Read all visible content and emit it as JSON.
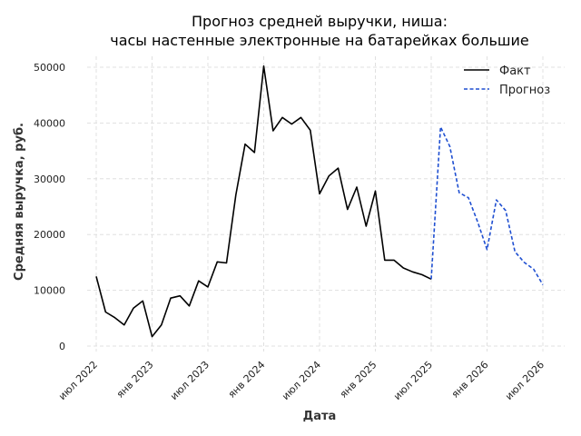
{
  "chart_data": {
    "type": "line",
    "title_lines": [
      "Прогноз средней выручки, ниша:",
      "часы настенные электронные на батарейках большие"
    ],
    "xlabel": "Дата",
    "ylabel": "Средняя выручка, руб.",
    "ylim": [
      0,
      50000
    ],
    "yticks": [
      0,
      10000,
      20000,
      30000,
      40000,
      50000
    ],
    "ytick_labels": [
      "0",
      "10000",
      "20000",
      "30000",
      "40000",
      "50000"
    ],
    "xticks": [
      "2022-07",
      "2023-01",
      "2023-07",
      "2024-01",
      "2024-07",
      "2025-01",
      "2025-07",
      "2026-01",
      "2026-07"
    ],
    "xtick_labels": [
      "июл 2022",
      "янв 2023",
      "июл 2023",
      "янв 2024",
      "июл 2024",
      "янв 2025",
      "июл 2025",
      "янв 2026",
      "июл 2026"
    ],
    "grid": true,
    "legend_position": "top-right",
    "series": [
      {
        "name": "Факт",
        "color": "#000000",
        "style": "solid",
        "x": [
          "2022-07",
          "2022-08",
          "2022-09",
          "2022-10",
          "2022-11",
          "2022-12",
          "2023-01",
          "2023-02",
          "2023-03",
          "2023-04",
          "2023-05",
          "2023-06",
          "2023-07",
          "2023-08",
          "2023-09",
          "2023-10",
          "2023-11",
          "2023-12",
          "2024-01",
          "2024-02",
          "2024-03",
          "2024-04",
          "2024-05",
          "2024-06",
          "2024-07",
          "2024-08",
          "2024-09",
          "2024-10",
          "2024-11",
          "2024-12",
          "2025-01",
          "2025-02",
          "2025-03",
          "2025-04",
          "2025-05",
          "2025-06",
          "2025-07"
        ],
        "values": [
          12500,
          6100,
          5100,
          3800,
          6800,
          8100,
          1700,
          3800,
          8600,
          9000,
          7200,
          11700,
          10600,
          15100,
          14900,
          27100,
          36200,
          34700,
          50200,
          38600,
          41000,
          39800,
          41000,
          38700,
          27300,
          30500,
          31900,
          24500,
          28500,
          21500,
          27800,
          15400,
          15400,
          14000,
          13300,
          12800,
          12000
        ]
      },
      {
        "name": "Прогноз",
        "color": "#1f4fd1",
        "style": "dashed",
        "x": [
          "2025-07",
          "2025-08",
          "2025-09",
          "2025-10",
          "2025-11",
          "2025-12",
          "2026-01",
          "2026-02",
          "2026-03",
          "2026-04",
          "2026-05",
          "2026-06",
          "2026-07"
        ],
        "values": [
          12000,
          39300,
          35800,
          27500,
          26600,
          22200,
          17300,
          26200,
          24300,
          16900,
          15000,
          13800,
          11000
        ]
      }
    ]
  }
}
